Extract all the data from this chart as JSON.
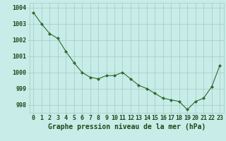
{
  "x": [
    0,
    1,
    2,
    3,
    4,
    5,
    6,
    7,
    8,
    9,
    10,
    11,
    12,
    13,
    14,
    15,
    16,
    17,
    18,
    19,
    20,
    21,
    22,
    23
  ],
  "y": [
    1003.7,
    1003.0,
    1002.4,
    1002.1,
    1001.3,
    1000.6,
    1000.0,
    999.7,
    999.6,
    999.8,
    999.8,
    1000.0,
    999.6,
    999.2,
    999.0,
    998.7,
    998.4,
    998.3,
    998.2,
    997.7,
    998.2,
    998.4,
    999.1,
    1000.4
  ],
  "line_color": "#2d6a2d",
  "marker_color": "#2d6a2d",
  "bg_color": "#c8ece8",
  "grid_color": "#9eccc8",
  "text_color": "#1a4a1a",
  "xlabel": "Graphe pression niveau de la mer (hPa)",
  "ylim": [
    997.5,
    1004.3
  ],
  "xlim": [
    -0.5,
    23.5
  ],
  "yticks": [
    998,
    999,
    1000,
    1001,
    1002,
    1003,
    1004
  ],
  "ytick_labels": [
    "998",
    "999",
    "1000",
    "1001",
    "1002",
    "1003",
    "1004"
  ],
  "xtick_labels": [
    "0",
    "1",
    "2",
    "3",
    "4",
    "5",
    "6",
    "7",
    "8",
    "9",
    "10",
    "11",
    "12",
    "13",
    "14",
    "15",
    "16",
    "17",
    "18",
    "19",
    "20",
    "21",
    "22",
    "23"
  ],
  "tick_fontsize": 6,
  "label_fontsize": 7,
  "linewidth": 0.8,
  "markersize": 2.2
}
